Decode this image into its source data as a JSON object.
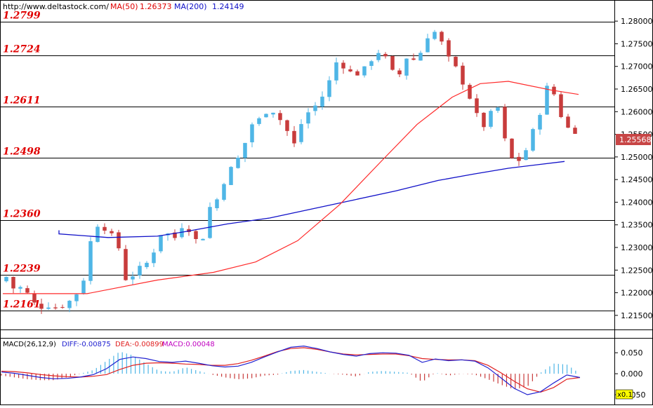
{
  "header": {
    "site": "http://www.deltastock.com/",
    "ma50_label": "MA(50)",
    "ma50_value": "1.26373",
    "ma200_label": "MA(200)",
    "ma200_value": "1.24149"
  },
  "macd_header": {
    "name": "MACD(26,12,9)",
    "diff": "DIFF:-0.00875",
    "dea": "DEA:-0.00899",
    "macd": "MACD:0.00048"
  },
  "colors": {
    "bull": "#4fb6e6",
    "bear": "#c83c3c",
    "ma50": "#ff2a2a",
    "ma200": "#1010c8",
    "level_text": "#e00000",
    "current_price_bg": "#c84646"
  },
  "chart_data": [
    {
      "type": "candlestick",
      "ylim": [
        1.2125,
        1.2825
      ],
      "y_ticks": [
        "1.28000",
        "1.27500",
        "1.27000",
        "1.26500",
        "1.26000",
        "1.25500",
        "1.25000",
        "1.24500",
        "1.24000",
        "1.23500",
        "1.23000",
        "1.22500",
        "1.22000",
        "1.21500"
      ],
      "current_price": "1.25568",
      "levels": [
        {
          "label": "1.2799",
          "value": 1.2799
        },
        {
          "label": "1.2724",
          "value": 1.2724
        },
        {
          "label": "1.2611",
          "value": 1.2611
        },
        {
          "label": "1.2498",
          "value": 1.2498
        },
        {
          "label": "1.2360",
          "value": 1.236
        },
        {
          "label": "1.2239",
          "value": 1.2239
        },
        {
          "label": "1.2161",
          "value": 1.2161
        }
      ],
      "close_path": [
        1.2235,
        1.2205,
        1.2215,
        1.218,
        1.2168,
        1.2172,
        1.2165,
        1.2175,
        1.219,
        1.222,
        1.232,
        1.236,
        1.233,
        1.232,
        1.223,
        1.224,
        1.226,
        1.227,
        1.233,
        1.233,
        1.232,
        1.236,
        1.232,
        1.231,
        1.239,
        1.241,
        1.2465,
        1.2485,
        1.2525,
        1.2575,
        1.2585,
        1.261,
        1.259,
        1.256,
        1.2525,
        1.259,
        1.2605,
        1.2625,
        1.2665,
        1.2715,
        1.2695,
        1.268,
        1.269,
        1.2715,
        1.2735,
        1.271,
        1.2665,
        1.272,
        1.2715,
        1.2735,
        1.2785,
        1.2765,
        1.272,
        1.2695,
        1.2655,
        1.2615,
        1.256,
        1.2595,
        1.261,
        1.251,
        1.2485,
        1.2505,
        1.2555,
        1.2605,
        1.2675,
        1.2605,
        1.2565,
        1.2557
      ],
      "ma50": [
        [
          1.2198,
          0
        ],
        [
          1.2198,
          12
        ],
        [
          1.2228,
          22
        ],
        [
          1.2245,
          30
        ],
        [
          1.2268,
          36
        ],
        [
          1.2315,
          42
        ],
        [
          1.2395,
          48
        ],
        [
          1.2492,
          54
        ],
        [
          1.2572,
          59
        ],
        [
          1.2632,
          64
        ],
        [
          1.2662,
          68
        ],
        [
          1.2667,
          72
        ],
        [
          1.2648,
          78
        ],
        [
          1.2638,
          82
        ]
      ],
      "ma200": [
        [
          1.2338,
          0
        ],
        [
          1.233,
          8
        ],
        [
          1.2322,
          15
        ],
        [
          1.2325,
          22
        ],
        [
          1.2335,
          26
        ],
        [
          1.2352,
          32
        ],
        [
          1.2365,
          38
        ],
        [
          1.2385,
          44
        ],
        [
          1.2405,
          50
        ],
        [
          1.2425,
          56
        ],
        [
          1.2448,
          62
        ],
        [
          1.2462,
          67
        ],
        [
          1.2475,
          72
        ],
        [
          1.249,
          80
        ]
      ],
      "period_count": 82
    },
    {
      "type": "macd",
      "ylim": [
        -0.065,
        0.072
      ],
      "y_ticks": [
        "0.050",
        "0.000",
        "-0.050"
      ],
      "scale_badge": "x0.1",
      "diff_path": [
        0.004,
        0.001,
        -0.004,
        -0.009,
        -0.012,
        -0.011,
        -0.008,
        -0.002,
        0.012,
        0.034,
        0.04,
        0.036,
        0.029,
        0.027,
        0.03,
        0.025,
        0.019,
        0.016,
        0.018,
        0.027,
        0.04,
        0.052,
        0.063,
        0.066,
        0.06,
        0.052,
        0.046,
        0.042,
        0.048,
        0.05,
        0.049,
        0.044,
        0.027,
        0.035,
        0.031,
        0.033,
        0.03,
        0.014,
        -0.01,
        -0.035,
        -0.05,
        -0.043,
        -0.022,
        -0.003,
        -0.009
      ],
      "dea_path": [
        0.006,
        0.005,
        0.002,
        -0.002,
        -0.005,
        -0.007,
        -0.008,
        -0.006,
        -0.002,
        0.01,
        0.02,
        0.025,
        0.026,
        0.025,
        0.023,
        0.022,
        0.02,
        0.02,
        0.024,
        0.032,
        0.042,
        0.053,
        0.06,
        0.062,
        0.058,
        0.052,
        0.047,
        0.045,
        0.046,
        0.047,
        0.047,
        0.043,
        0.036,
        0.034,
        0.033,
        0.033,
        0.031,
        0.02,
        0.002,
        -0.018,
        -0.036,
        -0.044,
        -0.033,
        -0.013,
        -0.009
      ]
    }
  ]
}
